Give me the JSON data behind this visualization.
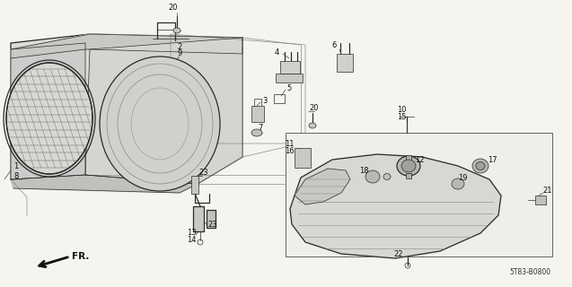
{
  "bg_color": "#f5f5f0",
  "diagram_code": "5T83-B0800",
  "line_color": "#2a2a2a",
  "gray": "#888888",
  "light_gray": "#bbbbbb",
  "fs_label": 6.0,
  "lw_main": 0.9,
  "lw_thin": 0.5,
  "lw_thick": 1.2
}
